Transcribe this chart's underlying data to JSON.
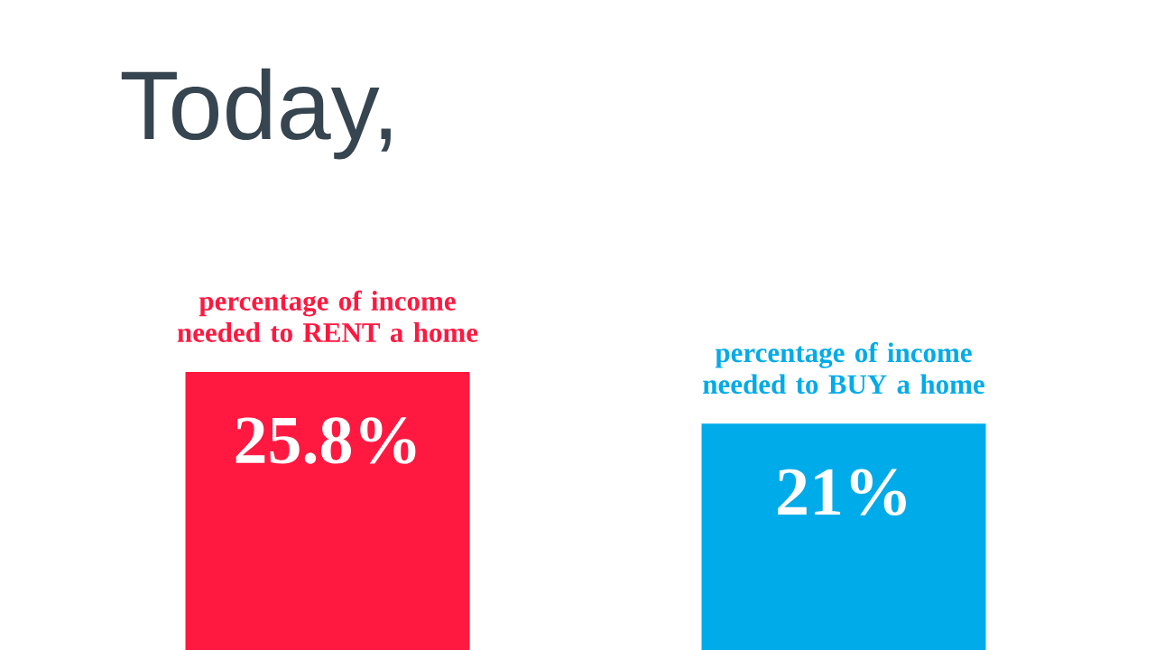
{
  "chart_data": {
    "type": "bar",
    "title": "Today,",
    "categories": [
      "percentage of income needed to RENT a home",
      "percentage of income needed to BUY a home"
    ],
    "values": [
      25.8,
      21
    ],
    "colors": [
      "#ff1940",
      "#00abe9"
    ],
    "value_labels": [
      "25.8%",
      "21%"
    ]
  }
}
